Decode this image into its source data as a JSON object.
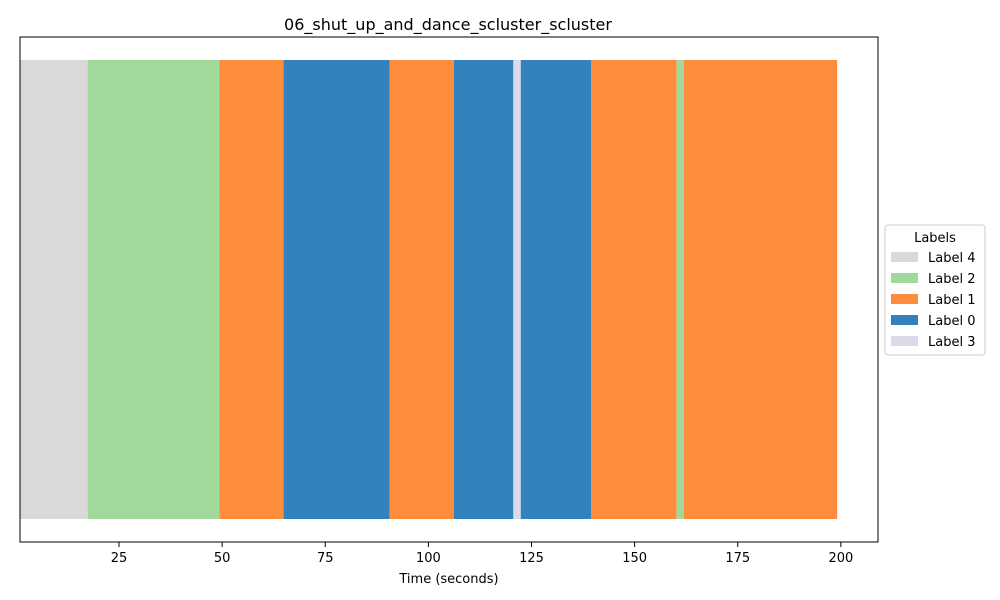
{
  "chart_data": {
    "type": "bar",
    "orientation": "horizontal-timeline",
    "title": "06_shut_up_and_dance_scluster_scluster",
    "xlabel": "Time (seconds)",
    "ylabel": "",
    "xlim": [
      1,
      209
    ],
    "xticks": [
      25,
      50,
      75,
      100,
      125,
      150,
      175,
      200
    ],
    "grid": false,
    "legend": {
      "title": "Labels",
      "placement": "center-right-outside",
      "entries": [
        "Label 4",
        "Label 2",
        "Label 1",
        "Label 0",
        "Label 3"
      ]
    },
    "colors": {
      "Label 4": "#d9d9d9",
      "Label 2": "#a1d99b",
      "Label 1": "#fd8d3c",
      "Label 0": "#3182bd",
      "Label 3": "#dadaeb"
    },
    "segments": [
      {
        "start": 1.0,
        "end": 17.4,
        "label": "Label 4"
      },
      {
        "start": 17.4,
        "end": 49.3,
        "label": "Label 2"
      },
      {
        "start": 49.3,
        "end": 64.9,
        "label": "Label 1"
      },
      {
        "start": 64.9,
        "end": 90.6,
        "label": "Label 0"
      },
      {
        "start": 90.6,
        "end": 106.2,
        "label": "Label 1"
      },
      {
        "start": 106.2,
        "end": 120.6,
        "label": "Label 0"
      },
      {
        "start": 120.6,
        "end": 122.4,
        "label": "Label 3"
      },
      {
        "start": 122.4,
        "end": 139.5,
        "label": "Label 0"
      },
      {
        "start": 139.5,
        "end": 160.2,
        "label": "Label 1"
      },
      {
        "start": 160.2,
        "end": 161.9,
        "label": "Label 2"
      },
      {
        "start": 161.9,
        "end": 199.1,
        "label": "Label 1"
      }
    ]
  }
}
